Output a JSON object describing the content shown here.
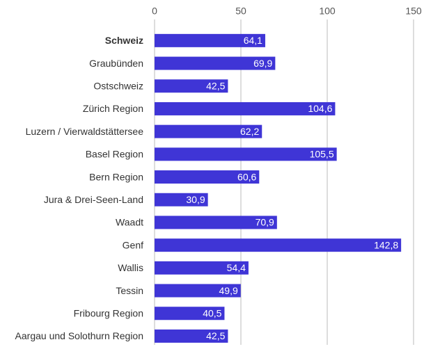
{
  "chart_data": {
    "type": "bar",
    "orientation": "horizontal",
    "categories": [
      "Schweiz",
      "Graubünden",
      "Ostschweiz",
      "Zürich Region",
      "Luzern / Vierwaldstättersee",
      "Basel Region",
      "Bern Region",
      "Jura & Drei-Seen-Land",
      "Waadt",
      "Genf",
      "Wallis",
      "Tessin",
      "Fribourg Region",
      "Aargau und Solothurn Region"
    ],
    "values": [
      64.1,
      69.9,
      42.5,
      104.6,
      62.2,
      105.5,
      60.6,
      30.9,
      70.9,
      142.8,
      54.4,
      49.9,
      40.5,
      42.5
    ],
    "value_labels": [
      "64,1",
      "69,9",
      "42,5",
      "104,6",
      "62,2",
      "105,5",
      "60,6",
      "30,9",
      "70,9",
      "142,8",
      "54,4",
      "49,9",
      "40,5",
      "42,5"
    ],
    "color": "#3f35d6",
    "xlim": [
      0,
      150
    ],
    "xticks": [
      0,
      50,
      100,
      150
    ],
    "grid": true
  }
}
